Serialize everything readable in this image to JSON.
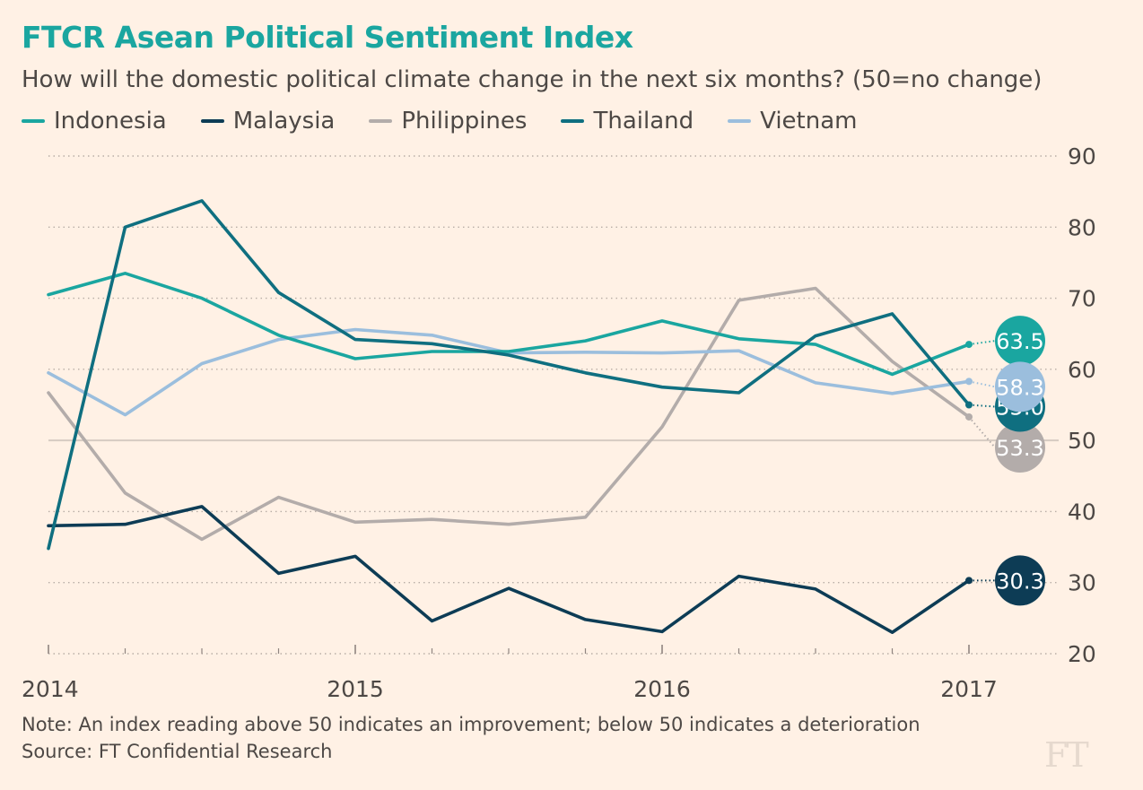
{
  "chart_data": {
    "type": "line",
    "title": "FTCR Asean Political Sentiment Index",
    "subtitle": "How will the domestic political climate change in the next six months? (50=no change)",
    "x": [
      2014.0,
      2014.25,
      2014.5,
      2014.75,
      2015.0,
      2015.25,
      2015.5,
      2015.75,
      2016.0,
      2016.25,
      2016.5,
      2016.75,
      2017.0
    ],
    "x_tick_labels": [
      "2014",
      "2015",
      "2016",
      "2017"
    ],
    "xlim": [
      2014,
      2017.3
    ],
    "ylim": [
      20,
      90
    ],
    "y_ticks": [
      20,
      30,
      40,
      50,
      60,
      70,
      80,
      90
    ],
    "y_axis_position": "right",
    "grid": "dotted horizontal",
    "reference_line": 50,
    "legend_position": "top-left",
    "series": [
      {
        "name": "Indonesia",
        "color": "#1aa6a0",
        "values": [
          70.5,
          73.5,
          70.0,
          64.8,
          61.5,
          62.5,
          62.5,
          64.0,
          66.8,
          64.3,
          63.5,
          59.3,
          63.5
        ],
        "end_label": "63.5"
      },
      {
        "name": "Malaysia",
        "color": "#0d3c55",
        "values": [
          38.0,
          38.2,
          40.7,
          31.3,
          33.7,
          24.6,
          29.2,
          24.8,
          23.1,
          30.9,
          29.1,
          23.0,
          30.3
        ],
        "end_label": "30.3"
      },
      {
        "name": "Philippines",
        "color": "#b3acaa",
        "values": [
          56.7,
          42.6,
          36.1,
          42.0,
          38.5,
          38.9,
          38.2,
          39.2,
          51.9,
          69.7,
          71.4,
          61.1,
          53.3
        ],
        "end_label": "53.3"
      },
      {
        "name": "Thailand",
        "color": "#0f6f80",
        "values": [
          34.8,
          80.0,
          83.7,
          70.8,
          64.2,
          63.6,
          62.0,
          59.5,
          57.5,
          56.7,
          64.7,
          67.8,
          55.0
        ],
        "end_label": "55.0"
      },
      {
        "name": "Vietnam",
        "color": "#9bbedd",
        "values": [
          59.5,
          53.6,
          60.8,
          64.2,
          65.6,
          64.8,
          62.3,
          62.4,
          62.3,
          62.6,
          58.1,
          56.6,
          58.3
        ],
        "end_label": "58.3"
      }
    ]
  },
  "note": "Note: An index reading above 50 indicates an improvement; below 50 indicates a deterioration",
  "source": "Source: FT Confidential Research",
  "logo": "FT"
}
